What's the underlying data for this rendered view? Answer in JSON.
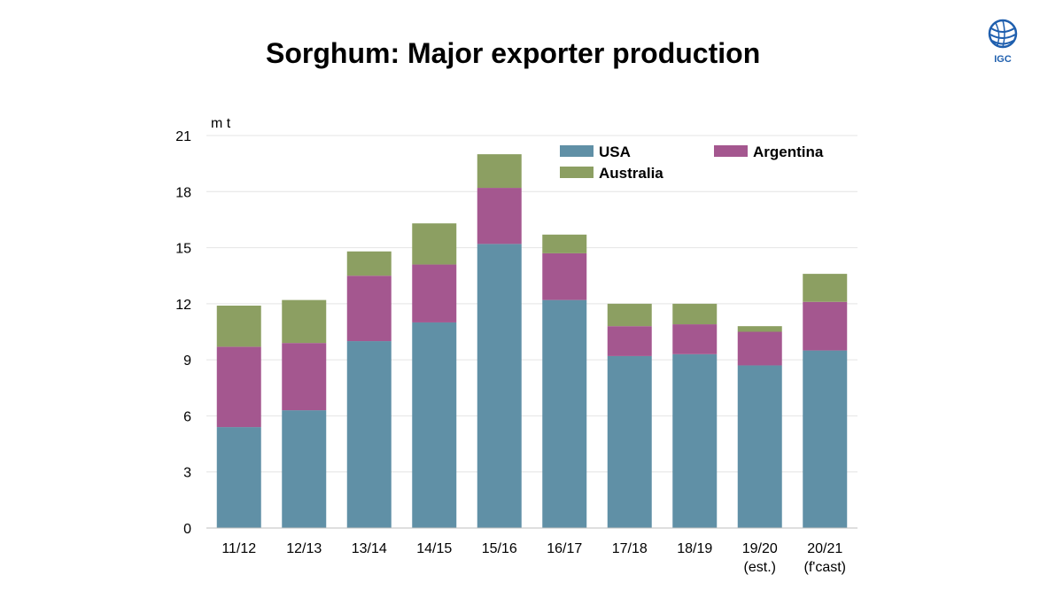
{
  "slide": {
    "title": "Sorghum: Major exporter production",
    "logo_text": "IGC"
  },
  "chart_data": {
    "type": "bar",
    "stacked": true,
    "title": "Sorghum: Major exporter production",
    "ylabel": "m t",
    "xlabel": "",
    "ylim": [
      0,
      21
    ],
    "yticks": [
      0,
      3,
      6,
      9,
      12,
      15,
      18,
      21
    ],
    "grid": true,
    "legend_position": "top-right",
    "categories": [
      [
        "11/12"
      ],
      [
        "12/13"
      ],
      [
        "13/14"
      ],
      [
        "14/15"
      ],
      [
        "15/16"
      ],
      [
        "16/17"
      ],
      [
        "17/18"
      ],
      [
        "18/19"
      ],
      [
        "19/20",
        "(est.)"
      ],
      [
        "20/21",
        "(f'cast)"
      ]
    ],
    "series": [
      {
        "name": "USA",
        "color": "#6090A6",
        "values": [
          5.4,
          6.3,
          10.0,
          11.0,
          15.2,
          12.2,
          9.2,
          9.3,
          8.7,
          9.5
        ]
      },
      {
        "name": "Argentina",
        "color": "#A4578F",
        "values": [
          4.3,
          3.6,
          3.5,
          3.1,
          3.0,
          2.5,
          1.6,
          1.6,
          1.8,
          2.6
        ]
      },
      {
        "name": "Australia",
        "color": "#8C9F62",
        "values": [
          2.2,
          2.3,
          1.3,
          2.2,
          1.8,
          1.0,
          1.2,
          1.1,
          0.3,
          1.5
        ]
      }
    ]
  }
}
